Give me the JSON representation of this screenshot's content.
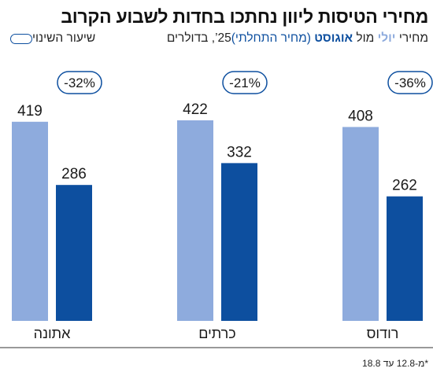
{
  "title": "מחירי הטיסות ליוון נחתכו בחדות לשבוע הקרוב",
  "subtitle": {
    "prefix": "מחירי",
    "july": "יולי",
    "middle": "מול",
    "august": "אוגוסט",
    "preliminary": "(מחיר התחלתי)",
    "suffix": "‎’25, בדולרים"
  },
  "legend": {
    "change_label": "שיעור השינוי"
  },
  "footnote": "*מ-12.8 עד 18.8",
  "colors": {
    "july": "#8eabdd",
    "august": "#0d4f9f",
    "pill": "#0d4f9f"
  },
  "chart_data": {
    "type": "bar",
    "categories": [
      "אתונה",
      "כרתים",
      "רודוס"
    ],
    "series": [
      {
        "name": "יולי",
        "values": [
          419,
          422,
          408
        ]
      },
      {
        "name": "אוגוסט",
        "values": [
          286,
          332,
          262
        ]
      }
    ],
    "change_labels": [
      "-32%",
      "-21%",
      "-36%"
    ],
    "ylim": [
      0,
      422
    ],
    "grid": false,
    "legend_position": "top-left"
  }
}
